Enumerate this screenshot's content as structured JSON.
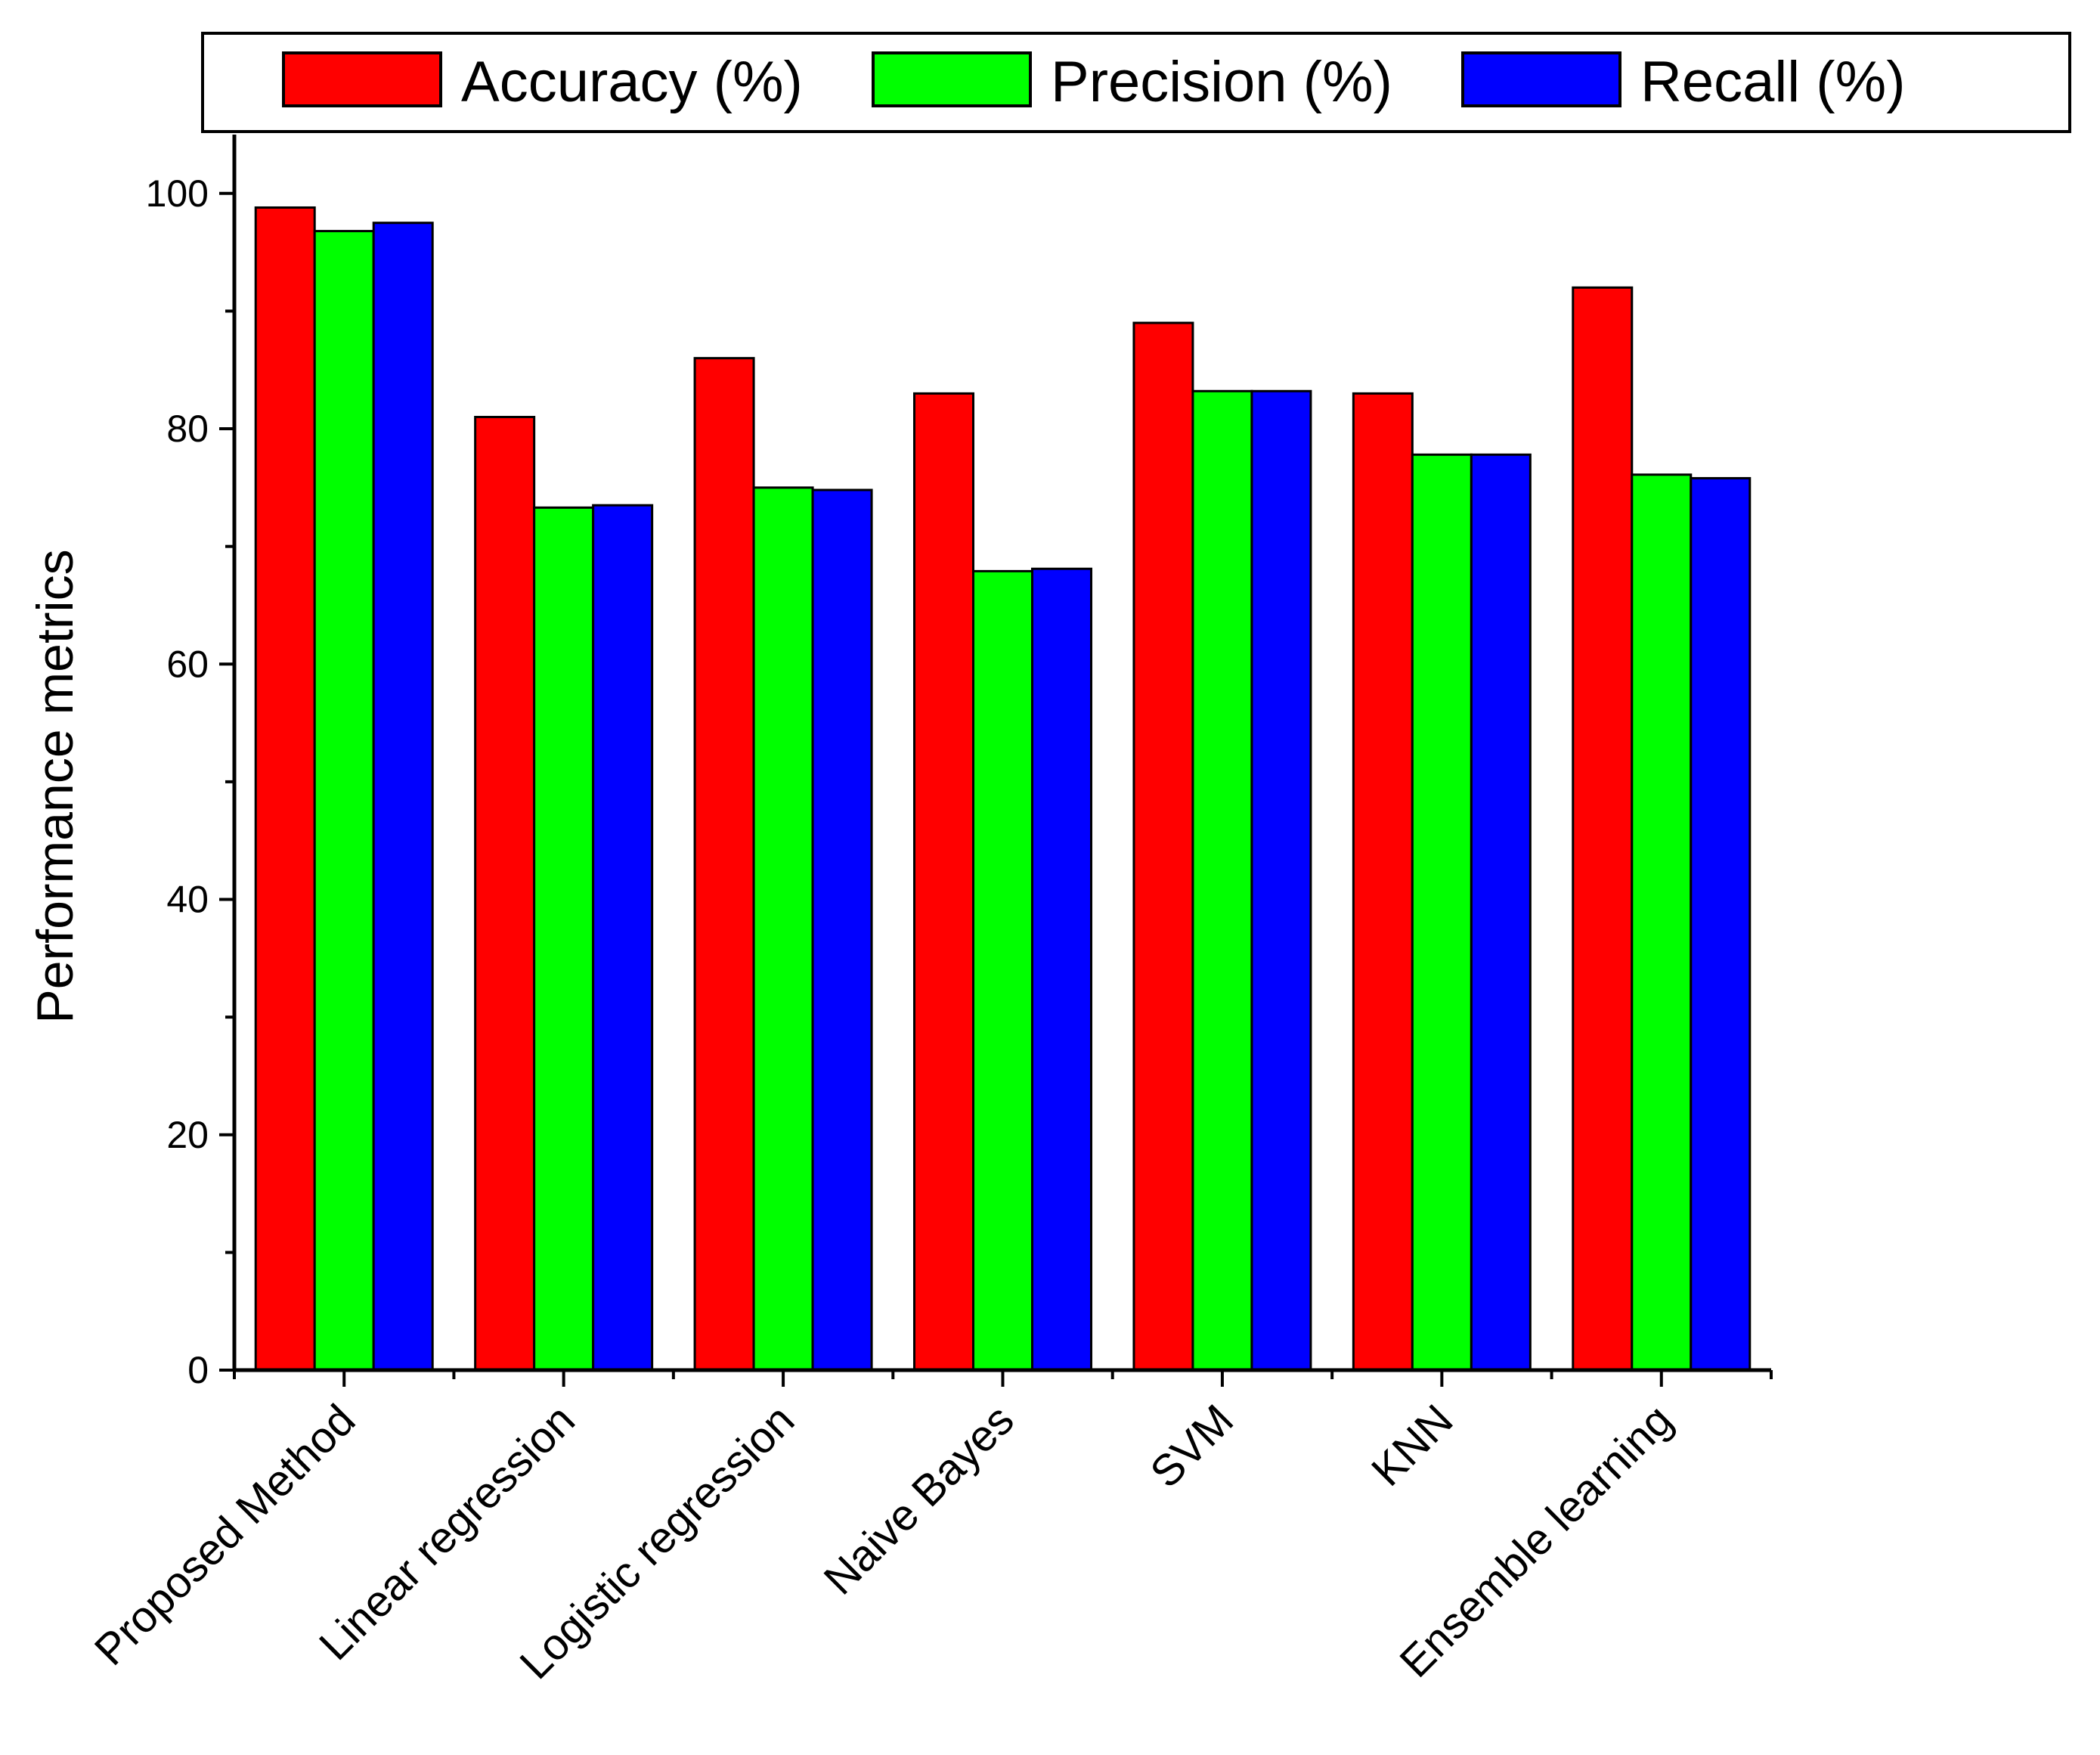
{
  "chart_data": {
    "type": "bar",
    "title": "",
    "xlabel": "",
    "ylabel": "Performance metrics",
    "ylim": [
      0,
      105
    ],
    "yticks": [
      0,
      20,
      40,
      60,
      80,
      100
    ],
    "grid": false,
    "legend_position": "top",
    "categories": [
      "Proposed Method",
      "Linear regression",
      "Logistic regression",
      "Naive Bayes",
      "SVM",
      "KNN",
      "Ensemble learning"
    ],
    "series": [
      {
        "name": "Accuracy (%)",
        "color": "#ff0000",
        "values": [
          98.8,
          81.0,
          86.0,
          83.0,
          89.0,
          83.0,
          92.0
        ]
      },
      {
        "name": "Precision (%)",
        "color": "#00ff00",
        "values": [
          96.8,
          73.3,
          75.0,
          67.9,
          83.2,
          77.8,
          76.1
        ]
      },
      {
        "name": "Recall (%)",
        "color": "#0000ff",
        "values": [
          97.5,
          73.5,
          74.8,
          68.1,
          83.2,
          77.8,
          75.8
        ]
      }
    ]
  }
}
